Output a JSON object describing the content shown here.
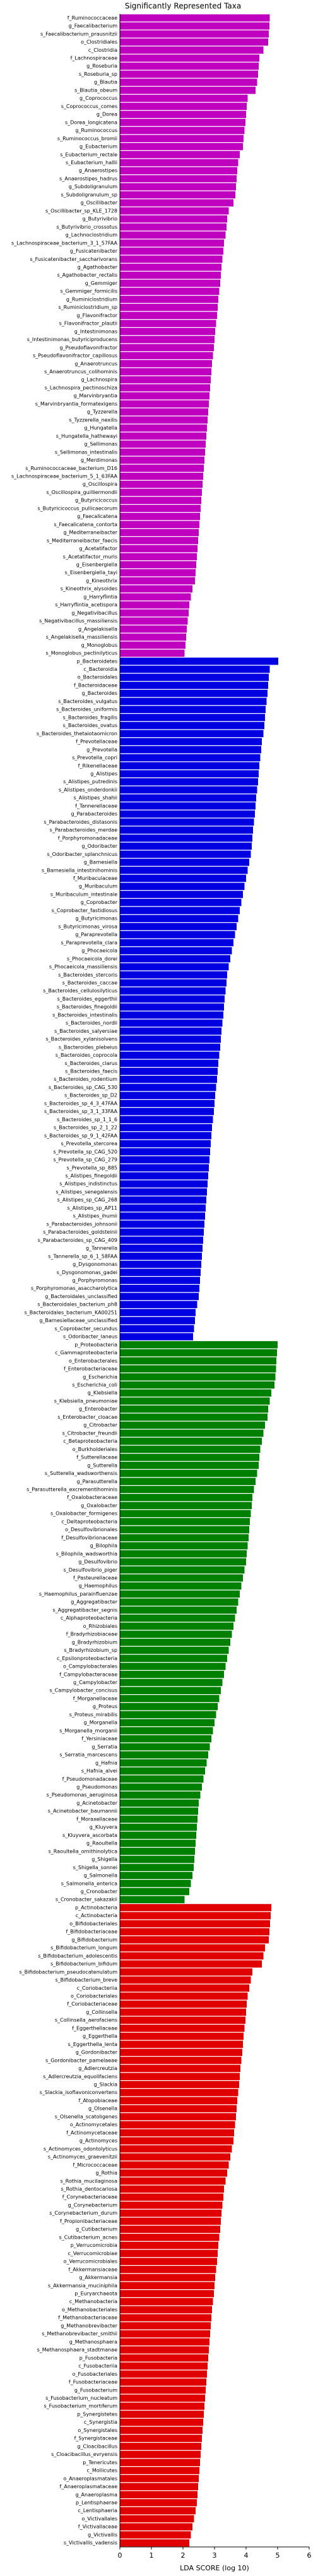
{
  "chart_data": {
    "type": "barh",
    "title": "Significantly Represented Taxa",
    "xlabel": "LDA SCORE (log 10)",
    "xlim": [
      0,
      6
    ],
    "xticks": [
      0,
      1,
      2,
      3,
      4,
      5,
      6
    ],
    "groups": [
      {
        "color": "#bf00bf",
        "categories": [
          "f_Ruminococcaceae",
          "g_Faecalibacterium",
          "s_Faecalibacterium_prausnitzii",
          "o_Clostridiales",
          "c_Clostridia",
          "f_Lachnospiraceae",
          "g_Roseburia",
          "s_Roseburia_sp",
          "g_Blautia",
          "s_Blautia_obeum",
          "g_Coprococcus",
          "s_Coprococcus_comes",
          "g_Dorea",
          "s_Dorea_longicatena",
          "g_Ruminococcus",
          "s_Ruminococcus_bromii",
          "g_Eubacterium",
          "s_Eubacterium_rectale",
          "s_Eubacterium_hallii",
          "g_Anaerostipes",
          "s_Anaerostipes_hadrus",
          "g_Subdoligranulum",
          "s_Subdoligranulum_sp",
          "g_Oscillibacter",
          "s_Oscillibacter_sp_KLE_1728",
          "g_Butyrivibrio",
          "s_Butyrivibrio_crossotus",
          "g_Lachnoclostridium",
          "s_Lachnospiraceae_bacterium_3_1_57FAA",
          "g_Fusicatenibacter",
          "s_Fusicatenibacter_saccharivorans",
          "g_Agathobacter",
          "s_Agathobacter_rectalis",
          "g_Gemmiger",
          "s_Gemmiger_formicilis",
          "g_Ruminiclostridium",
          "s_Ruminiclostridium_sp",
          "g_Flavonifractor",
          "s_Flavonifractor_plautii",
          "g_Intestinimonas",
          "s_Intestinimonas_butyriciproducens",
          "g_Pseudoflavonifractor",
          "s_Pseudoflavonifractor_capillosus",
          "g_Anaerotruncus",
          "s_Anaerotruncus_colihominis",
          "g_Lachnospira",
          "s_Lachnospira_pectinoschiza",
          "g_Marvinbryantia",
          "s_Marvinbryantia_formatexigens",
          "g_Tyzzerella",
          "s_Tyzzerella_nexilis",
          "g_Hungatella",
          "s_Hungatella_hathewayi",
          "g_Sellimonas",
          "s_Sellimonas_intestinalis",
          "g_Merdimonas",
          "s_Ruminococcaceae_bacterium_D16",
          "s_Lachnospiraceae_bacterium_5_1_63FAA",
          "g_Oscillospira",
          "s_Oscillospira_guilliermondii",
          "g_Butyricicoccus",
          "s_Butyricicoccus_pullicaecorum",
          "g_Faecalicatena",
          "s_Faecalicatena_contorta",
          "g_Mediterraneibacter",
          "s_Mediterraneibacter_faecis",
          "g_Acetatifactor",
          "s_Acetatifactor_muris",
          "g_Eisenbergiella",
          "s_Eisenbergiella_tayi",
          "g_Kineothrix",
          "s_Kineothrix_alysoides",
          "g_Harryflintia",
          "s_Harryflintia_acetispora",
          "g_Negativibacillus",
          "s_Negativibacillus_massiliensis",
          "g_Angelakisella",
          "s_Angelakisella_massiliensis",
          "g_Monoglobus",
          "s_Monoglobus_pectinilyticus"
        ],
        "values": [
          4.75,
          4.74,
          4.72,
          4.7,
          4.55,
          4.42,
          4.4,
          4.38,
          4.35,
          4.3,
          4.05,
          4.02,
          4.0,
          3.98,
          3.95,
          3.92,
          3.9,
          3.8,
          3.75,
          3.72,
          3.7,
          3.68,
          3.66,
          3.6,
          3.45,
          3.4,
          3.38,
          3.35,
          3.3,
          3.28,
          3.25,
          3.22,
          3.2,
          3.18,
          3.15,
          3.12,
          3.1,
          3.08,
          3.05,
          3.02,
          3.0,
          2.98,
          2.95,
          2.92,
          2.9,
          2.88,
          2.86,
          2.84,
          2.82,
          2.8,
          2.78,
          2.76,
          2.74,
          2.72,
          2.7,
          2.68,
          2.66,
          2.64,
          2.62,
          2.6,
          2.58,
          2.56,
          2.54,
          2.52,
          2.5,
          2.48,
          2.46,
          2.44,
          2.42,
          2.4,
          2.38,
          2.3,
          2.25,
          2.2,
          2.18,
          2.15,
          2.12,
          2.1,
          2.08,
          2.05
        ]
      },
      {
        "color": "#0000e0",
        "categories": [
          "p_Bacteroidetes",
          "c_Bacteroidia",
          "o_Bacteroidales",
          "f_Bacteroidaceae",
          "g_Bacteroides",
          "s_Bacteroides_vulgatus",
          "s_Bacteroides_uniformis",
          "s_Bacteroides_fragilis",
          "s_Bacteroides_ovatus",
          "s_Bacteroides_thetaiotaomicron",
          "f_Prevotellaceae",
          "g_Prevotella",
          "s_Prevotella_copri",
          "f_Rikenellaceae",
          "g_Alistipes",
          "s_Alistipes_putredinis",
          "s_Alistipes_onderdonkii",
          "s_Alistipes_shahii",
          "f_Tannerellaceae",
          "g_Parabacteroides",
          "s_Parabacteroides_distasonis",
          "s_Parabacteroides_merdae",
          "f_Porphyromonadaceae",
          "g_Odoribacter",
          "s_Odoribacter_splanchnicus",
          "g_Barnesiella",
          "s_Barnesiella_intestinihominis",
          "f_Muribaculaceae",
          "g_Muribaculum",
          "s_Muribaculum_intestinale",
          "g_Coprobacter",
          "s_Coprobacter_fastidiosus",
          "g_Butyricimonas",
          "s_Butyricimonas_virosa",
          "g_Paraprevotella",
          "s_Paraprevotella_clara",
          "g_Phocaeicola",
          "s_Phocaeicola_dorei",
          "s_Phocaeicola_massiliensis",
          "s_Bacteroides_stercoris",
          "s_Bacteroides_caccae",
          "s_Bacteroides_cellulosilyticus",
          "s_Bacteroides_eggerthii",
          "s_Bacteroides_finegoldii",
          "s_Bacteroides_intestinalis",
          "s_Bacteroides_nordii",
          "s_Bacteroides_salyersiae",
          "s_Bacteroides_xylanisolvens",
          "s_Bacteroides_plebeius",
          "s_Bacteroides_coprocola",
          "s_Bacteroides_clarus",
          "s_Bacteroides_faecis",
          "s_Bacteroides_rodentium",
          "s_Bacteroides_sp_CAG_530",
          "s_Bacteroides_sp_D2",
          "s_Bacteroides_sp_4_3_47FAA",
          "s_Bacteroides_sp_3_1_33FAA",
          "s_Bacteroides_sp_1_1_6",
          "s_Bacteroides_sp_2_1_22",
          "s_Bacteroides_sp_9_1_42FAA",
          "s_Prevotella_stercorea",
          "s_Prevotella_sp_CAG_520",
          "s_Prevotella_sp_CAG_279",
          "s_Prevotella_sp_885",
          "s_Alistipes_finegoldii",
          "s_Alistipes_indistinctus",
          "s_Alistipes_senegalensis",
          "s_Alistipes_sp_CAG_268",
          "s_Alistipes_sp_AP11",
          "s_Alistipes_ihumii",
          "s_Parabacteroides_johnsonii",
          "s_Parabacteroides_goldsteinii",
          "s_Parabacteroides_sp_CAG_409",
          "g_Tannerella",
          "s_Tannerella_sp_6_1_58FAA",
          "g_Dysgonomonas",
          "s_Dysgonomonas_gadei",
          "g_Porphyromonas",
          "s_Porphyromonas_asaccharolytica",
          "g_Bacteroidales_unclassified",
          "s_Bacteroidales_bacterium_ph8",
          "s_Bacteroidales_bacterium_KA00251",
          "g_Barnesiellaceae_unclassified",
          "s_Coprobacter_secundus",
          "s_Odoribacter_laneus"
        ],
        "values": [
          5.02,
          4.75,
          4.72,
          4.7,
          4.68,
          4.65,
          4.62,
          4.6,
          4.58,
          4.55,
          4.5,
          4.48,
          4.45,
          4.42,
          4.4,
          4.38,
          4.35,
          4.32,
          4.3,
          4.28,
          4.25,
          4.22,
          4.2,
          4.18,
          4.15,
          4.1,
          4.05,
          4.0,
          3.95,
          3.9,
          3.85,
          3.8,
          3.75,
          3.7,
          3.65,
          3.6,
          3.55,
          3.5,
          3.45,
          3.4,
          3.38,
          3.35,
          3.32,
          3.3,
          3.28,
          3.25,
          3.22,
          3.2,
          3.18,
          3.15,
          3.12,
          3.1,
          3.08,
          3.05,
          3.02,
          3.0,
          2.98,
          2.95,
          2.92,
          2.9,
          2.88,
          2.86,
          2.84,
          2.82,
          2.8,
          2.78,
          2.76,
          2.74,
          2.72,
          2.7,
          2.68,
          2.66,
          2.64,
          2.62,
          2.6,
          2.58,
          2.56,
          2.54,
          2.52,
          2.5,
          2.45,
          2.4,
          2.38,
          2.35,
          2.32
        ]
      },
      {
        "color": "#008000",
        "categories": [
          "p_Proteobacteria",
          "c_Gammaproteobacteria",
          "o_Enterobacterales",
          "f_Enterobacteriaceae",
          "g_Escherichia",
          "s_Escherichia_coli",
          "g_Klebsiella",
          "s_Klebsiella_pneumoniae",
          "g_Enterobacter",
          "s_Enterobacter_cloacae",
          "g_Citrobacter",
          "s_Citrobacter_freundii",
          "c_Betaproteobacteria",
          "o_Burkholderiales",
          "f_Sutterellaceae",
          "g_Sutterella",
          "s_Sutterella_wadsworthensis",
          "g_Parasutterella",
          "s_Parasutterella_excrementihominis",
          "f_Oxalobacteraceae",
          "g_Oxalobacter",
          "s_Oxalobacter_formigenes",
          "c_Deltaproteobacteria",
          "o_Desulfovibrionales",
          "f_Desulfovibrionaceae",
          "g_Bilophila",
          "s_Bilophila_wadsworthia",
          "g_Desulfovibrio",
          "s_Desulfovibrio_piger",
          "f_Pasteurellaceae",
          "g_Haemophilus",
          "s_Haemophilus_parainfluenzae",
          "g_Aggregatibacter",
          "s_Aggregatibacter_segnis",
          "c_Alphaproteobacteria",
          "o_Rhizobiales",
          "f_Bradyrhizobiaceae",
          "g_Bradyrhizobium",
          "s_Bradyrhizobium_sp",
          "c_Epsilonproteobacteria",
          "o_Campylobacterales",
          "f_Campylobacteraceae",
          "g_Campylobacter",
          "s_Campylobacter_concisus",
          "f_Morganellaceae",
          "g_Proteus",
          "s_Proteus_mirabilis",
          "g_Morganella",
          "s_Morganella_morganii",
          "f_Yersiniaceae",
          "g_Serratia",
          "s_Serratia_marcescens",
          "g_Hafnia",
          "s_Hafnia_alvei",
          "f_Pseudomonadaceae",
          "g_Pseudomonas",
          "s_Pseudomonas_aeruginosa",
          "g_Acinetobacter",
          "s_Acinetobacter_baumannii",
          "f_Moraxellaceae",
          "g_Kluyvera",
          "s_Kluyvera_ascorbata",
          "g_Raoultella",
          "s_Raoultella_ornithinolytica",
          "g_Shigella",
          "s_Shigella_sonnei",
          "g_Salmonella",
          "s_Salmonella_enterica",
          "g_Cronobacter",
          "s_Cronobacter_sakazakii"
        ],
        "values": [
          5.0,
          4.98,
          4.96,
          4.95,
          4.93,
          4.9,
          4.8,
          4.75,
          4.7,
          4.68,
          4.6,
          4.55,
          4.5,
          4.45,
          4.42,
          4.4,
          4.35,
          4.3,
          4.25,
          4.2,
          4.18,
          4.15,
          4.12,
          4.1,
          4.08,
          4.05,
          4.02,
          4.0,
          3.95,
          3.9,
          3.85,
          3.8,
          3.75,
          3.7,
          3.65,
          3.6,
          3.55,
          3.5,
          3.45,
          3.4,
          3.35,
          3.3,
          3.25,
          3.2,
          3.15,
          3.1,
          3.05,
          3.0,
          2.95,
          2.9,
          2.85,
          2.8,
          2.75,
          2.7,
          2.65,
          2.6,
          2.55,
          2.5,
          2.48,
          2.46,
          2.44,
          2.42,
          2.4,
          2.38,
          2.36,
          2.34,
          2.3,
          2.25,
          2.2,
          2.05
        ]
      },
      {
        "color": "#e00000",
        "categories": [
          "p_Actinobacteria",
          "c_Actinobacteria",
          "o_Bifidobacteriales",
          "f_Bifidobacteriaceae",
          "g_Bifidobacterium",
          "s_Bifidobacterium_longum",
          "s_Bifidobacterium_adolescentis",
          "s_Bifidobacterium_bifidum",
          "s_Bifidobacterium_pseudocatenulatum",
          "s_Bifidobacterium_breve",
          "c_Coriobacteriia",
          "o_Coriobacteriales",
          "f_Coriobacteriaceae",
          "g_Collinsella",
          "s_Collinsella_aerofaciens",
          "f_Eggerthellaceae",
          "g_Eggerthella",
          "s_Eggerthella_lenta",
          "g_Gordonibacter",
          "s_Gordonibacter_pamelaeae",
          "g_Adlercreutzia",
          "s_Adlercreutzia_equolifaciens",
          "g_Slackia",
          "s_Slackia_isoflavoniconvertens",
          "f_Atopobiaceae",
          "g_Olsenella",
          "s_Olsenella_scatoligenes",
          "o_Actinomycetales",
          "f_Actinomycetaceae",
          "g_Actinomyces",
          "s_Actinomyces_odontolyticus",
          "s_Actinomyces_graevenitzii",
          "f_Micrococcaceae",
          "g_Rothia",
          "s_Rothia_mucilaginosa",
          "s_Rothia_dentocariosa",
          "f_Corynebacteriaceae",
          "g_Corynebacterium",
          "s_Corynebacterium_durum",
          "f_Propionibacteriaceae",
          "g_Cutibacterium",
          "s_Cutibacterium_acnes",
          "p_Verrucomicrobia",
          "c_Verrucomicrobiae",
          "o_Verrucomicrobiales",
          "f_Akkermansiaceae",
          "g_Akkermansia",
          "s_Akkermansia_muciniphila",
          "p_Euryarchaeota",
          "c_Methanobacteria",
          "o_Methanobacteriales",
          "f_Methanobacteriaceae",
          "g_Methanobrevibacter",
          "s_Methanobrevibacter_smithii",
          "g_Methanosphaera",
          "s_Methanosphaera_stadtmanae",
          "p_Fusobacteria",
          "c_Fusobacteriia",
          "o_Fusobacteriales",
          "f_Fusobacteriaceae",
          "g_Fusobacterium",
          "s_Fusobacterium_nucleatum",
          "s_Fusobacterium_mortiferum",
          "p_Synergistetes",
          "c_Synergistia",
          "o_Synergistales",
          "f_Synergistaceae",
          "g_Cloacibacillus",
          "s_Cloacibacillus_evryensis",
          "p_Tenericutes",
          "c_Mollicutes",
          "o_Anaeroplasmatales",
          "f_Anaeroplasmataceae",
          "g_Anaeroplasma",
          "p_Lentisphaerae",
          "c_Lentisphaeria",
          "o_Victivallales",
          "f_Victivallaceae",
          "g_Victivallis",
          "s_Victivallis_vadensis"
        ],
        "values": [
          4.8,
          4.78,
          4.76,
          4.74,
          4.72,
          4.6,
          4.55,
          4.5,
          4.2,
          4.15,
          4.1,
          4.05,
          4.02,
          4.0,
          3.98,
          3.95,
          3.92,
          3.9,
          3.88,
          3.85,
          3.82,
          3.8,
          3.78,
          3.75,
          3.72,
          3.7,
          3.68,
          3.65,
          3.62,
          3.6,
          3.55,
          3.5,
          3.45,
          3.4,
          3.35,
          3.3,
          3.28,
          3.25,
          3.22,
          3.2,
          3.18,
          3.15,
          3.12,
          3.1,
          3.08,
          3.05,
          3.02,
          3.0,
          2.98,
          2.95,
          2.92,
          2.9,
          2.88,
          2.86,
          2.84,
          2.82,
          2.8,
          2.78,
          2.76,
          2.74,
          2.72,
          2.7,
          2.68,
          2.66,
          2.64,
          2.62,
          2.6,
          2.58,
          2.56,
          2.54,
          2.52,
          2.5,
          2.48,
          2.46,
          2.44,
          2.4,
          2.35,
          2.3,
          2.25,
          2.2
        ]
      }
    ]
  }
}
